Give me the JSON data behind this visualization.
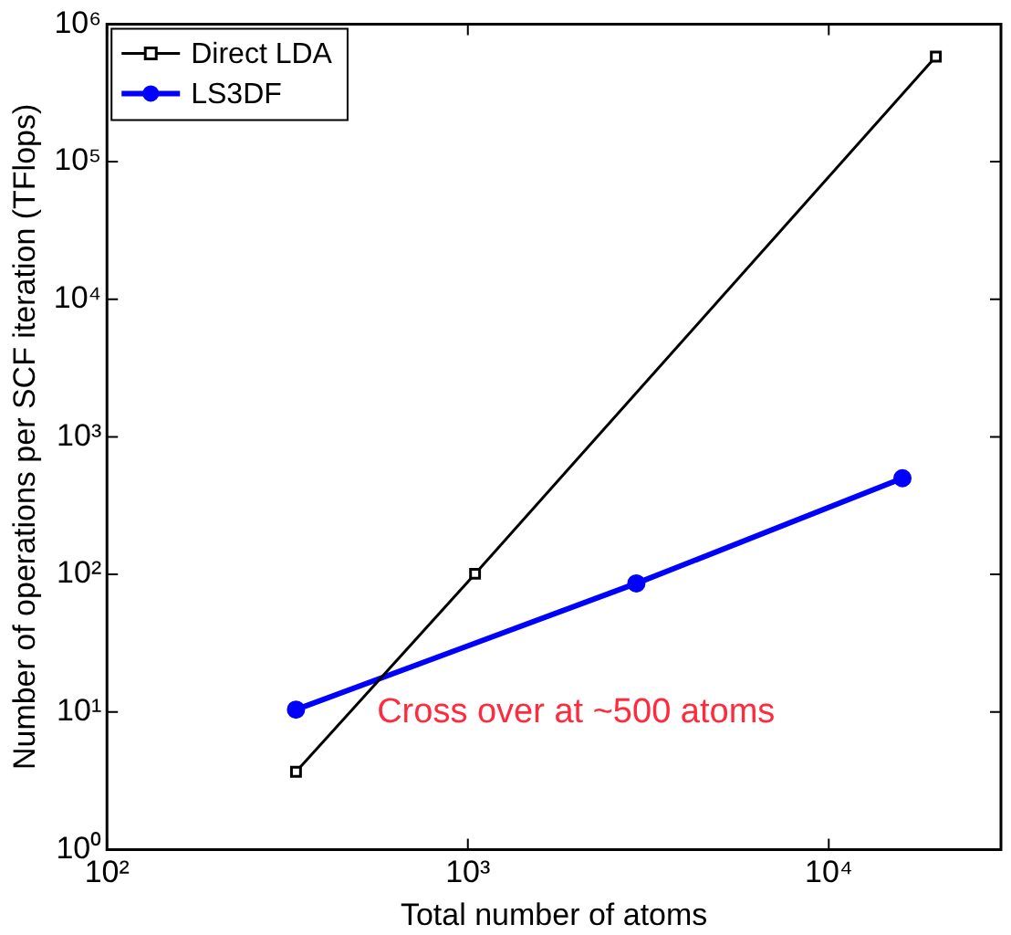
{
  "chart_data": {
    "type": "line",
    "xlabel": "Total number of atoms",
    "ylabel": "Number of operations per SCF iteration (TFlops)",
    "log": "xy",
    "xlim": [
      100,
      30000
    ],
    "xticks": [
      {
        "value": 100,
        "label": "10²"
      },
      {
        "value": 1000,
        "label": "10³"
      },
      {
        "value": 10000,
        "label": "10⁴"
      }
    ],
    "ylim": [
      1,
      1000000
    ],
    "yticks": [
      {
        "value": 1,
        "label": "10⁰"
      },
      {
        "value": 10,
        "label": "10¹"
      },
      {
        "value": 100,
        "label": "10²"
      },
      {
        "value": 1000,
        "label": "10³"
      },
      {
        "value": 10000,
        "label": "10⁴"
      },
      {
        "value": 100000,
        "label": "10⁵"
      },
      {
        "value": 1000000,
        "label": "10⁶"
      }
    ],
    "grid": false,
    "legend": "top left",
    "line_style": "solid",
    "series": [
      {
        "name": "Direct LDA",
        "color": "#000000",
        "marker": "square",
        "x": [
          334,
          1047,
          19800
        ],
        "values": [
          3.67,
          101,
          580000
        ]
      },
      {
        "name": "LS3DF",
        "color": "#0000ff",
        "marker": "circle",
        "x": [
          334,
          2930,
          16000
        ],
        "values": [
          10.4,
          86,
          500
        ]
      }
    ],
    "annotations": [
      {
        "text": "Cross over at ~500 atoms",
        "x": 560,
        "y": 16
      }
    ]
  }
}
